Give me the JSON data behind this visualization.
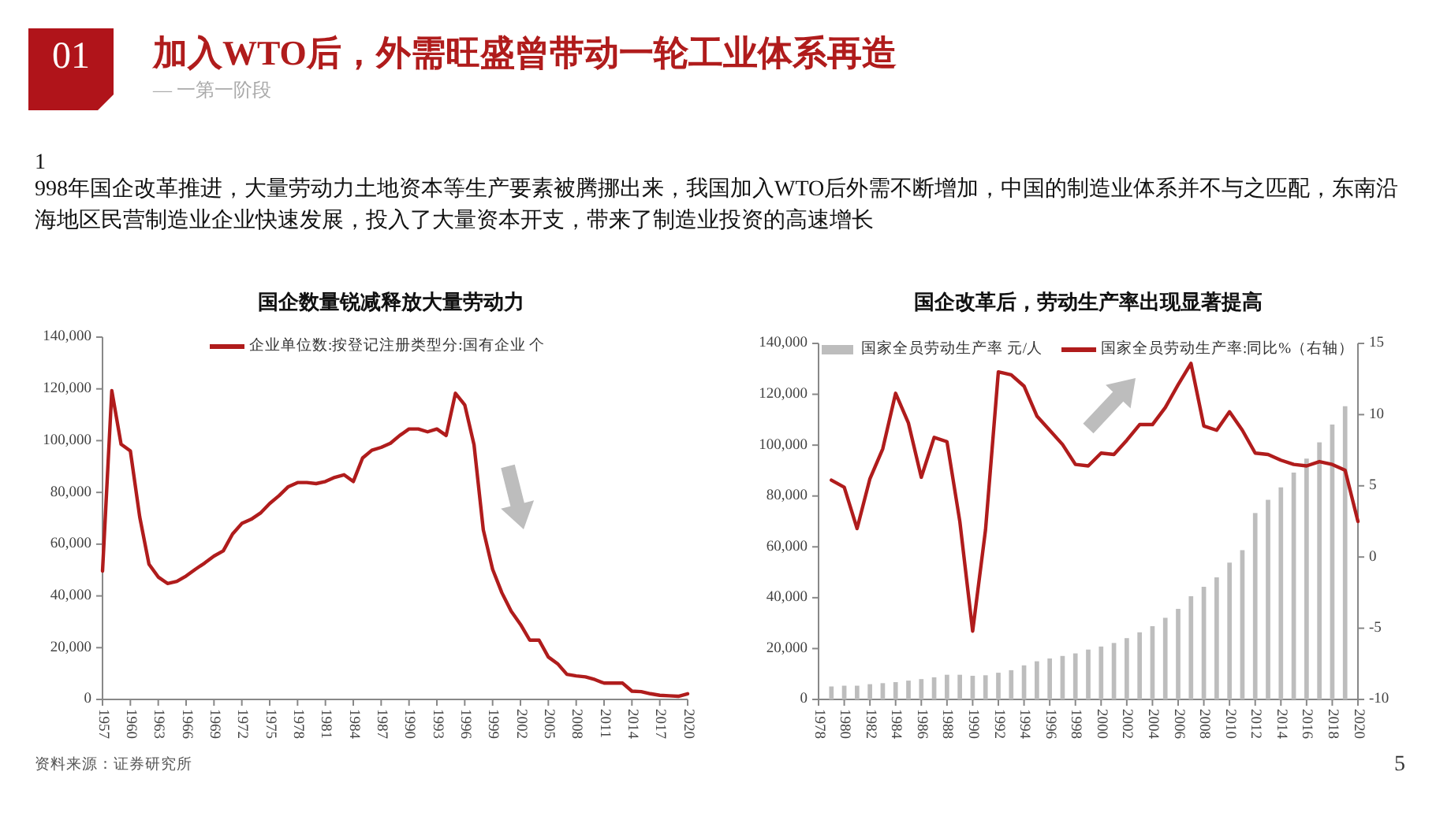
{
  "chart_data": [
    {
      "type": "other",
      "title": "加入WTO后，外需旺盛曾带动一轮工业体系再造",
      "subtitle": "— 一第一阶段",
      "annotations": [
        "01",
        "1",
        "998年国企改革推进，大量劳动力土地资本等生产要素被腾挪出来，我国加入WTO后外需不断增加，中国的制造业体系并不与之匹配，东南沿海地区民营制造业企业快速发展，投入了大量资本开支，带来了制造业投资的高速增长",
        "5"
      ]
    },
    {
      "type": "line",
      "title": "国企数量锐减释放大量劳动力",
      "legend": "top",
      "annotations": [
        "资料来源：证券研究所"
      ],
      "x": [
        1957,
        1958,
        1959,
        1960,
        1961,
        1962,
        1963,
        1964,
        1965,
        1966,
        1967,
        1968,
        1969,
        1970,
        1971,
        1972,
        1973,
        1974,
        1975,
        1976,
        1977,
        1978,
        1979,
        1980,
        1981,
        1982,
        1983,
        1984,
        1985,
        1986,
        1987,
        1988,
        1989,
        1990,
        1991,
        1992,
        1993,
        1994,
        1995,
        1996,
        1997,
        1998,
        1999,
        2000,
        2001,
        2002,
        2003,
        2004,
        2005,
        2006,
        2007,
        2008,
        2009,
        2010,
        2011,
        2012,
        2013,
        2014,
        2015,
        2016,
        2017,
        2018,
        2019,
        2020
      ],
      "xlim": [
        1957,
        2020
      ],
      "xticks": [
        1957,
        1960,
        1963,
        1966,
        1969,
        1972,
        1975,
        1978,
        1981,
        1984,
        1987,
        1990,
        1993,
        1996,
        1999,
        2002,
        2005,
        2008,
        2011,
        2014,
        2017,
        2020
      ],
      "ylim": [
        0,
        140000
      ],
      "yticks": [
        0,
        {
          "value": 20000,
          "label": "20,000"
        },
        {
          "value": 40000,
          "label": "40,000"
        },
        {
          "value": 60000,
          "label": "60,000"
        },
        {
          "value": 80000,
          "label": "80,000"
        },
        {
          "value": 100000,
          "label": "100,000"
        },
        {
          "value": 120000,
          "label": "120,000"
        },
        {
          "value": 140000,
          "label": "140,000"
        }
      ],
      "series": [
        {
          "name": "企业单位数:按登记注册类型分:国有企业 个",
          "color": "#b01c1c",
          "values": [
            49600,
            119300,
            98600,
            96000,
            70600,
            52300,
            47300,
            44800,
            45600,
            47700,
            50300,
            52700,
            55400,
            57400,
            63900,
            68000,
            69600,
            72000,
            75700,
            78700,
            82200,
            83800,
            83800,
            83400,
            84200,
            85800,
            86800,
            84200,
            93300,
            96300,
            97400,
            99000,
            102000,
            104500,
            104500,
            103400,
            104500,
            102000,
            118300,
            113800,
            98400,
            65500,
            50300,
            41200,
            34100,
            29000,
            22900,
            22900,
            16400,
            13800,
            9700,
            9100,
            8700,
            7700,
            6300,
            6300,
            6300,
            3200,
            3000,
            2200,
            1600,
            1400,
            1200,
            2200
          ]
        }
      ]
    },
    {
      "type": "bar",
      "title": "国企改革后，劳动生产率出现显著提高",
      "legend": "top",
      "xlim": [
        1978,
        2020
      ],
      "xticks": [
        1978,
        1980,
        1982,
        1984,
        1986,
        1988,
        1990,
        1992,
        1994,
        1996,
        1998,
        2000,
        2002,
        2004,
        2006,
        2008,
        2010,
        2012,
        2014,
        2016,
        2018,
        2020
      ],
      "ylim": [
        0,
        140000
      ],
      "yticks": [
        0,
        {
          "value": 20000,
          "label": "20,000"
        },
        {
          "value": 40000,
          "label": "40,000"
        },
        {
          "value": 60000,
          "label": "60,000"
        },
        {
          "value": 80000,
          "label": "80,000"
        },
        {
          "value": 100000,
          "label": "100,000"
        },
        {
          "value": 120000,
          "label": "120,000"
        },
        {
          "value": 140000,
          "label": "140,000"
        }
      ],
      "y2lim": [
        -10,
        15
      ],
      "y2ticks": [
        -10,
        -5,
        0,
        5,
        10,
        15
      ],
      "series": [
        {
          "name": "国家全员劳动生产率 元/人",
          "type": "bar",
          "color": "#bdbdbd",
          "x": [
            1979,
            1980,
            1981,
            1982,
            1983,
            1984,
            1985,
            1986,
            1987,
            1988,
            1989,
            1990,
            1991,
            1992,
            1993,
            1994,
            1995,
            1996,
            1997,
            1998,
            1999,
            2000,
            2001,
            2002,
            2003,
            2004,
            2005,
            2006,
            2007,
            2008,
            2009,
            2010,
            2011,
            2012,
            2013,
            2014,
            2015,
            2016,
            2017,
            2018,
            2019
          ],
          "values": [
            5100,
            5400,
            5400,
            6000,
            6400,
            6800,
            7400,
            8000,
            8700,
            9700,
            9700,
            9300,
            9500,
            10500,
            11500,
            13400,
            15000,
            16100,
            17100,
            18100,
            19600,
            20800,
            22200,
            24100,
            26400,
            28800,
            32100,
            35600,
            40600,
            44300,
            48000,
            53800,
            58700,
            73300,
            78500,
            83400,
            89200,
            94700,
            101100,
            108100,
            115300
          ]
        },
        {
          "name": "国家全员劳动生产率:同比%（右轴）",
          "type": "line",
          "axis": "y2",
          "color": "#b01c1c",
          "x": [
            1979,
            1980,
            1981,
            1982,
            1983,
            1984,
            1985,
            1986,
            1987,
            1988,
            1989,
            1990,
            1991,
            1992,
            1993,
            1994,
            1995,
            1996,
            1997,
            1998,
            1999,
            2000,
            2001,
            2002,
            2003,
            2004,
            2005,
            2006,
            2007,
            2008,
            2009,
            2010,
            2011,
            2012,
            2013,
            2014,
            2015,
            2016,
            2017,
            2018,
            2019,
            2020
          ],
          "values": [
            5.4,
            4.9,
            2.0,
            5.5,
            7.6,
            11.5,
            9.4,
            5.6,
            8.4,
            8.1,
            2.5,
            -5.2,
            1.9,
            13.0,
            12.8,
            12.0,
            9.9,
            8.9,
            7.9,
            6.5,
            6.4,
            7.3,
            7.2,
            8.2,
            9.3,
            9.3,
            10.5,
            12.1,
            13.6,
            9.2,
            8.9,
            10.2,
            8.9,
            7.3,
            7.2,
            6.8,
            6.5,
            6.4,
            6.7,
            6.5,
            6.1,
            2.5
          ]
        }
      ]
    }
  ]
}
